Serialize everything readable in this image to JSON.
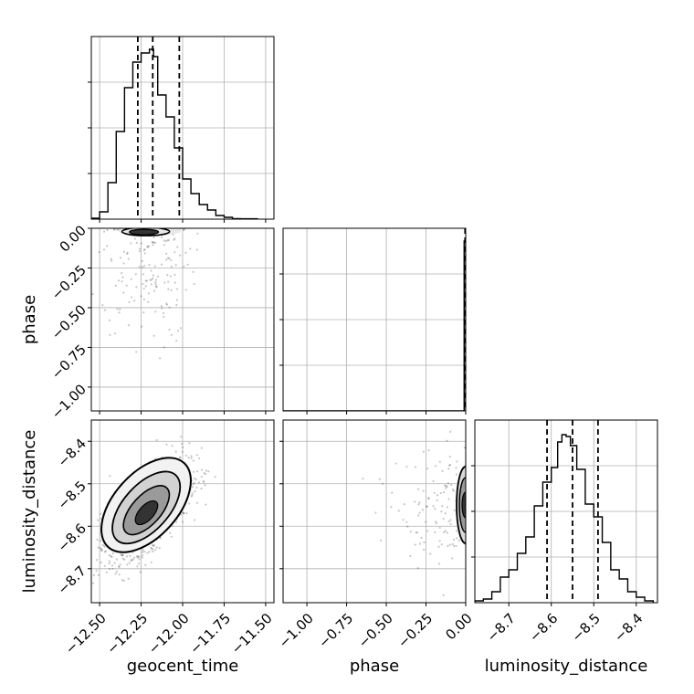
{
  "chart_data": {
    "type": "corner",
    "parameters": [
      "geocent_time",
      "phase",
      "luminosity_distance"
    ],
    "grid": true,
    "axes": {
      "geocent_time": {
        "label": "geocent_time",
        "range": [
          -12.55,
          -11.45
        ],
        "ticks": [
          -12.5,
          -12.25,
          -12.0,
          -11.75,
          -11.5
        ],
        "tick_labels": [
          "−12.50",
          "−12.25",
          "−12.00",
          "−11.75",
          "−11.50"
        ]
      },
      "phase": {
        "label": "phase",
        "range": [
          -1.15,
          0.0
        ],
        "ticks": [
          -1.0,
          -0.75,
          -0.5,
          -0.25,
          0.0
        ],
        "tick_labels": [
          "−1.00",
          "−0.75",
          "−0.50",
          "−0.25",
          "0.00"
        ]
      },
      "luminosity_distance": {
        "label": "luminosity_distance",
        "range": [
          -8.78,
          -8.35
        ],
        "ticks": [
          -8.7,
          -8.6,
          -8.5,
          -8.4
        ],
        "tick_labels": [
          "−8.7",
          "−8.6",
          "−8.5",
          "−8.4"
        ]
      }
    },
    "histograms": {
      "geocent_time": {
        "bin_edges": [
          -12.55,
          -12.5,
          -12.45,
          -12.4,
          -12.35,
          -12.3,
          -12.25,
          -12.225,
          -12.2,
          -12.175,
          -12.15,
          -12.1,
          -12.05,
          -12.0,
          -11.95,
          -11.9,
          -11.85,
          -11.8,
          -11.75,
          -11.7,
          -11.65,
          -11.55
        ],
        "counts": [
          0.005,
          0.04,
          0.2,
          0.48,
          0.72,
          0.86,
          0.91,
          0.91,
          0.93,
          0.89,
          0.68,
          0.56,
          0.39,
          0.22,
          0.14,
          0.08,
          0.05,
          0.02,
          0.01,
          0.003,
          0.002
        ],
        "quantiles": [
          -12.27,
          -12.18,
          -12.02
        ]
      },
      "phase": {
        "bin_edges": [
          -1.15,
          -0.05,
          -0.01,
          0.0
        ],
        "counts": [
          0.0,
          0.0,
          0.93
        ],
        "quantiles": [
          -0.004,
          -0.002,
          -0.001
        ]
      },
      "luminosity_distance": {
        "bin_edges": [
          -8.78,
          -8.76,
          -8.74,
          -8.72,
          -8.7,
          -8.68,
          -8.66,
          -8.64,
          -8.62,
          -8.6,
          -8.585,
          -8.575,
          -8.565,
          -8.555,
          -8.54,
          -8.52,
          -8.5,
          -8.48,
          -8.46,
          -8.44,
          -8.42,
          -8.4,
          -8.38,
          -8.36
        ],
        "counts": [
          0.01,
          0.02,
          0.06,
          0.14,
          0.18,
          0.27,
          0.36,
          0.53,
          0.66,
          0.74,
          0.88,
          0.92,
          0.91,
          0.86,
          0.73,
          0.54,
          0.47,
          0.33,
          0.18,
          0.13,
          0.06,
          0.03,
          0.01
        ],
        "quantiles": [
          -8.61,
          -8.55,
          -8.49
        ]
      }
    },
    "pairs": [
      {
        "x": "geocent_time",
        "y": "phase",
        "center": [
          -12.22,
          -0.02
        ],
        "density": "concentrated near phase 0"
      },
      {
        "x": "geocent_time",
        "y": "luminosity_distance",
        "center": [
          -12.22,
          -8.55
        ],
        "correlation": "positive"
      },
      {
        "x": "phase",
        "y": "luminosity_distance",
        "center": [
          -0.003,
          -8.55
        ],
        "density": "concentrated near phase 0"
      }
    ]
  }
}
